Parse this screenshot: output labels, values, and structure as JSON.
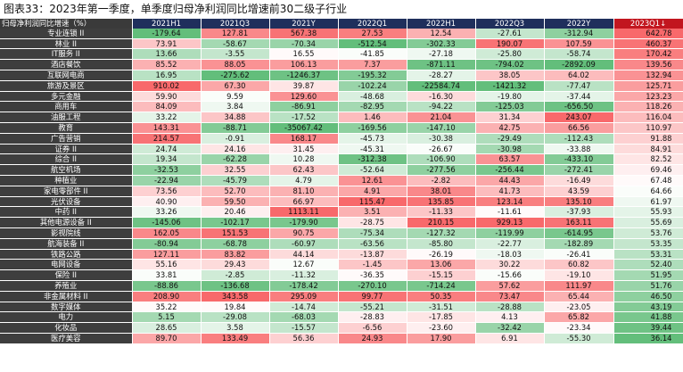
{
  "title": "图表33：2023年第一季度，单季度归母净利润同比增速前30二级子行业",
  "table": {
    "header_label": "归母净利润同比增速（%）",
    "columns": [
      "2021H1",
      "2021Q3",
      "2021Y",
      "2022Q1",
      "2022H1",
      "2022Q3",
      "2022Y",
      "2023Q1↓"
    ],
    "rows": [
      {
        "name": "专业连锁 II",
        "values": [
          "-179.64",
          "127.81",
          "567.38",
          "27.53",
          "12.54",
          "-27.61",
          "-312.94",
          "642.78"
        ]
      },
      {
        "name": "林业 II",
        "values": [
          "73.91",
          "-58.67",
          "-70.34",
          "-512.54",
          "-302.33",
          "190.07",
          "107.59",
          "460.37"
        ]
      },
      {
        "name": "IT服务 II",
        "values": [
          "13.66",
          "-3.55",
          "16.55",
          "-41.85",
          "-27.18",
          "-25.80",
          "-58.74",
          "170.42"
        ]
      },
      {
        "name": "酒店餐饮",
        "values": [
          "85.52",
          "88.05",
          "106.13",
          "7.37",
          "-871.11",
          "-794.02",
          "-2892.09",
          "139.56"
        ]
      },
      {
        "name": "互联网电商",
        "values": [
          "16.95",
          "-275.62",
          "-1246.37",
          "-195.32",
          "-28.27",
          "38.05",
          "64.02",
          "132.94"
        ]
      },
      {
        "name": "旅游及景区",
        "values": [
          "910.02",
          "67.30",
          "39.87",
          "-102.24",
          "-22584.74",
          "-1421.32",
          "-77.47",
          "125.71"
        ]
      },
      {
        "name": "多元金融",
        "values": [
          "59.90",
          "9.59",
          "129.60",
          "-48.68",
          "-16.30",
          "-19.80",
          "-37.44",
          "123.23"
        ]
      },
      {
        "name": "商用车",
        "values": [
          "84.09",
          "3.84",
          "-86.91",
          "-82.95",
          "-94.22",
          "-125.03",
          "-656.50",
          "118.26"
        ]
      },
      {
        "name": "油服工程",
        "values": [
          "33.22",
          "34.88",
          "-17.52",
          "1.46",
          "21.04",
          "31.34",
          "243.07",
          "116.04"
        ]
      },
      {
        "name": "教育",
        "values": [
          "143.31",
          "-88.71",
          "-35067.42",
          "-169.56",
          "-147.10",
          "42.75",
          "66.56",
          "110.97"
        ]
      },
      {
        "name": "广告营销",
        "values": [
          "214.57",
          "-0.91",
          "168.17",
          "-45.73",
          "-30.38",
          "-29.49",
          "-112.43",
          "91.88"
        ]
      },
      {
        "name": "证券 II",
        "values": [
          "24.74",
          "24.16",
          "31.45",
          "-45.31",
          "-26.67",
          "-30.98",
          "-33.88",
          "84.91"
        ]
      },
      {
        "name": "综合 II",
        "values": [
          "19.34",
          "-62.28",
          "10.28",
          "-312.38",
          "-106.90",
          "63.57",
          "-433.10",
          "82.52"
        ]
      },
      {
        "name": "航空机场",
        "values": [
          "-32.53",
          "32.55",
          "62.43",
          "-52.64",
          "-277.56",
          "-256.44",
          "-272.41",
          "69.46"
        ]
      },
      {
        "name": "种植业",
        "values": [
          "-22.94",
          "-45.79",
          "4.79",
          "12.61",
          "-2.82",
          "44.43",
          "-16.49",
          "67.48"
        ]
      },
      {
        "name": "家电零部件 II",
        "values": [
          "73.56",
          "52.70",
          "81.10",
          "4.91",
          "38.01",
          "41.73",
          "43.59",
          "64.66"
        ]
      },
      {
        "name": "光伏设备",
        "values": [
          "40.90",
          "59.50",
          "66.97",
          "115.47",
          "135.85",
          "123.14",
          "135.10",
          "61.97"
        ]
      },
      {
        "name": "中药 II",
        "values": [
          "33.26",
          "20.46",
          "1113.11",
          "3.51",
          "-11.33",
          "-11.61",
          "-37.93",
          "55.93"
        ]
      },
      {
        "name": "其他电源设备 II",
        "values": [
          "-145.06",
          "-102.17",
          "-179.90",
          "-28.75",
          "210.15",
          "929.13",
          "163.11",
          "55.69"
        ]
      },
      {
        "name": "影视院线",
        "values": [
          "162.05",
          "151.53",
          "90.75",
          "-75.34",
          "-127.32",
          "-119.99",
          "-614.95",
          "53.76"
        ]
      },
      {
        "name": "航海装备 II",
        "values": [
          "-80.94",
          "-68.78",
          "-60.97",
          "-63.56",
          "-85.80",
          "-22.77",
          "-182.89",
          "53.35"
        ]
      },
      {
        "name": "铁路公路",
        "values": [
          "127.11",
          "83.82",
          "44.14",
          "-13.87",
          "-26.19",
          "-18.03",
          "-26.41",
          "53.31"
        ]
      },
      {
        "name": "电网设备",
        "values": [
          "55.16",
          "29.43",
          "12.67",
          "-1.45",
          "13.06",
          "30.22",
          "60.82",
          "52.40"
        ]
      },
      {
        "name": "保险 II",
        "values": [
          "33.81",
          "-2.85",
          "-11.32",
          "-36.35",
          "-15.15",
          "-15.66",
          "-19.10",
          "51.95"
        ]
      },
      {
        "name": "养殖业",
        "values": [
          "-88.86",
          "-136.68",
          "-178.42",
          "-270.10",
          "-714.24",
          "57.62",
          "111.97",
          "51.76"
        ]
      },
      {
        "name": "非金属材料 II",
        "values": [
          "208.90",
          "343.58",
          "295.09",
          "99.77",
          "50.35",
          "73.47",
          "65.44",
          "46.50"
        ]
      },
      {
        "name": "数字媒体",
        "values": [
          "35.22",
          "19.84",
          "-14.74",
          "-55.21",
          "-31.51",
          "-28.88",
          "-23.05",
          "43.19"
        ]
      },
      {
        "name": "电力",
        "values": [
          "5.15",
          "-29.08",
          "-68.03",
          "-28.83",
          "-17.85",
          "4.13",
          "65.82",
          "41.88"
        ]
      },
      {
        "name": "化妆品",
        "values": [
          "28.65",
          "3.58",
          "-15.57",
          "-6.56",
          "-23.60",
          "-32.42",
          "-23.34",
          "39.44"
        ]
      },
      {
        "name": "医疗美容",
        "values": [
          "89.70",
          "133.49",
          "56.36",
          "24.93",
          "17.90",
          "6.91",
          "-55.30",
          "36.14"
        ]
      }
    ]
  },
  "colors": {
    "header_bg": "#1f2f5c",
    "last_header_bg": "#c2161f",
    "row_label_bg": "#3e3e3e",
    "positive_strong": "#f8696b",
    "negative_strong": "#63be7b"
  }
}
